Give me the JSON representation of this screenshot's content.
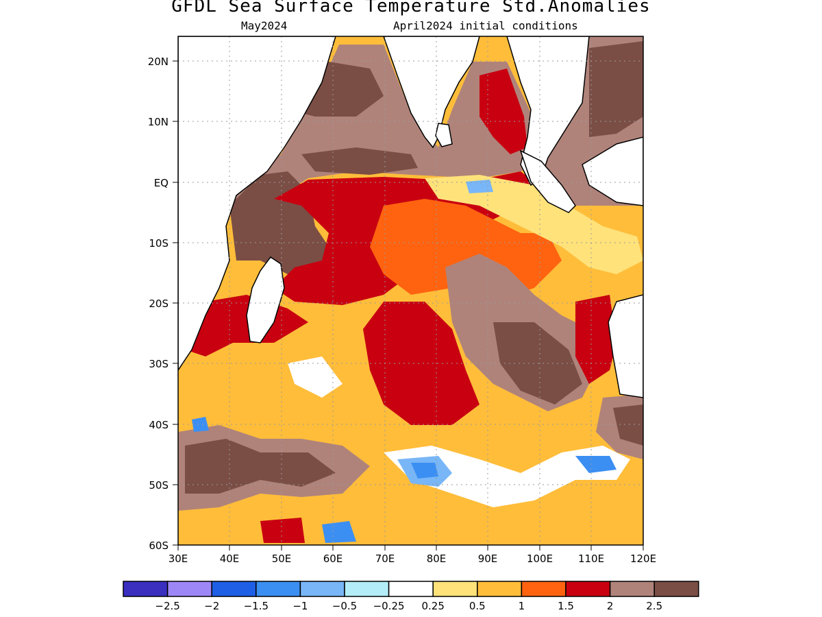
{
  "title": "GFDL Sea Surface Temperature Std.Anomalies",
  "subtitle_left": "May2024",
  "subtitle_right": "April2024 initial conditions",
  "map": {
    "lon_range": [
      30,
      120
    ],
    "lat_range": [
      -60,
      24
    ],
    "lat_ticks": [
      "20N",
      "10N",
      "EQ",
      "10S",
      "20S",
      "30S",
      "40S",
      "50S",
      "60S"
    ],
    "lon_ticks": [
      "30E",
      "40E",
      "50E",
      "60E",
      "70E",
      "80E",
      "90E",
      "100E",
      "110E",
      "120E"
    ],
    "gridlines": true,
    "region": "Indian Ocean"
  },
  "colorbar": {
    "colors": [
      "#3a2fbf",
      "#9d87f7",
      "#1f5fe6",
      "#3c8ff2",
      "#78b6f7",
      "#b3edf7",
      "#ffffff",
      "#ffe27a",
      "#ffbd3a",
      "#ff6310",
      "#c80010",
      "#b0837a",
      "#7a4e45"
    ],
    "labels": [
      "−2.5",
      "−2",
      "−1.5",
      "−1",
      "−0.5",
      "−0.25",
      "0.25",
      "0.5",
      "1",
      "1.5",
      "2",
      "2.5"
    ]
  }
}
